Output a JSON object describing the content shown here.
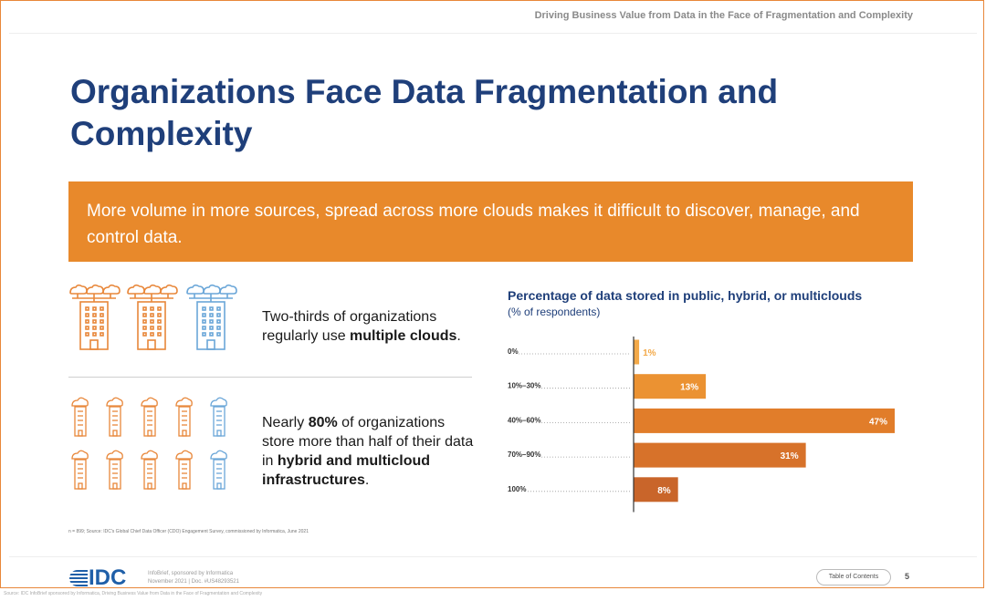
{
  "header": {
    "title": "Driving Business Value from Data in the Face of Fragmentation and Complexity"
  },
  "page_title": "Organizations Face Data Fragmentation and Complexity",
  "banner": {
    "text": "More volume in more sources, spread across more clouds makes it difficult to discover, manage, and control data."
  },
  "stat1": {
    "pre": "Two-thirds of organizations regularly use ",
    "bold": "multiple clouds",
    "post": "."
  },
  "stat2": {
    "pre1": "Nearly ",
    "bold1": "80%",
    "pre2": " of organizations store more than half of their data in ",
    "bold2": "hybrid and multicloud infrastructures",
    "post": "."
  },
  "footnote": "n = 899; Source: IDC's Global Chief Data Officer (CDO) Engagement Survey, commissioned by Informatica, June 2021",
  "colors": {
    "blue": "#1f3f7a",
    "orange": "#e8892b",
    "icon_orange": "#e8873a",
    "icon_blue": "#6aa6d8"
  },
  "icons": {
    "row1": [
      "cloud-building-icon-orange",
      "cloud-building-icon-orange",
      "cloud-building-icon-blue"
    ],
    "grid": "small-cloud-building-icon"
  },
  "chart_data": {
    "type": "bar",
    "orientation": "horizontal",
    "title": "Percentage of data stored in public, hybrid, or multiclouds",
    "subtitle": "(% of respondents)",
    "categories": [
      "0%",
      "10%–30%",
      "40%–60%",
      "70%–90%",
      "100%"
    ],
    "values": [
      1,
      13,
      47,
      31,
      8
    ],
    "value_labels": [
      "1%",
      "13%",
      "47%",
      "31%",
      "8%"
    ],
    "bar_colors": [
      "#f3a948",
      "#eb9232",
      "#e17d2a",
      "#d7722a",
      "#c9652a"
    ],
    "xlim": [
      0,
      50
    ]
  },
  "footer": {
    "logo": "IDC",
    "meta_line1": "InfoBrief, sponsored by Informatica",
    "meta_line2": "November 2021 | Doc. #US48293521",
    "toc_label": "Table of Contents",
    "page": "5"
  },
  "caption": "Source: IDC InfoBrief sponsored by Informatica, Driving Business Value from Data in the Face of Fragmentation and Complexity"
}
